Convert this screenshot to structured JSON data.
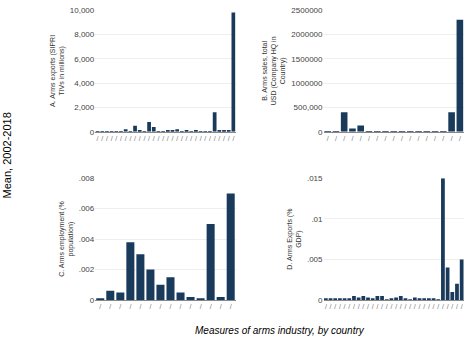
{
  "chart_data": [
    {
      "type": "bar",
      "ylabel": "A. Arms exports (SIPRI TIVs in millions)",
      "categories": [
        "/",
        "/",
        "/",
        "/",
        "/",
        "/",
        "/",
        "/",
        "/",
        "/",
        "/",
        "/",
        "/",
        "/",
        "/",
        "/",
        "/",
        "/",
        "/",
        "/",
        "/",
        "/",
        "/",
        "/",
        "/",
        "/",
        "/",
        "/",
        "/",
        "/"
      ],
      "values": [
        20,
        10,
        40,
        30,
        50,
        10,
        200,
        30,
        500,
        100,
        20,
        800,
        400,
        5,
        10,
        80,
        150,
        200,
        10,
        150,
        10,
        70,
        50,
        20,
        10,
        1600,
        100,
        80,
        100,
        9800
      ],
      "color": "#1a3a5c",
      "ylim": [
        0,
        10000
      ],
      "yticks": [
        0,
        {
          "value": 2000,
          "label": "2,000"
        },
        {
          "value": 4000,
          "label": "4,000"
        },
        {
          "value": 6000,
          "label": "6,000"
        },
        {
          "value": 8000,
          "label": "8,000"
        },
        {
          "value": 10000,
          "label": "10,000"
        }
      ],
      "grid": true
    },
    {
      "type": "bar",
      "ylabel": "B. Arms sales, total USD (Company HQ in Country)",
      "categories": [
        "/",
        "/",
        "/",
        "/",
        "/",
        "/",
        "/",
        "/",
        "/",
        "/",
        "/",
        "/",
        "/",
        "/",
        "/",
        "/",
        "/"
      ],
      "values": [
        1000,
        500,
        400000,
        70000,
        130000,
        3000,
        2000,
        1000,
        3000,
        8000,
        1000,
        5000,
        2000,
        1000,
        5000,
        400000,
        2300000
      ],
      "color": "#1a3a5c",
      "ylim": [
        0,
        2500000
      ],
      "yticks": [
        0,
        {
          "value": 500000,
          "label": "500,000"
        },
        1000000,
        1500000,
        2000000,
        2500000
      ],
      "grid": true
    },
    {
      "type": "bar",
      "ylabel": "C. Arms employment (% population)",
      "categories": [
        "/",
        "/",
        "/",
        "/",
        "/",
        "/",
        "/",
        "/",
        "/",
        "/",
        "/",
        "/",
        "/",
        "/"
      ],
      "values": [
        0.0001,
        0.0006,
        0.0005,
        0.0038,
        0.003,
        0.002,
        0.001,
        0.0015,
        0.0005,
        0.0002,
        0.0001,
        0.005,
        0.0002,
        0.007
      ],
      "color": "#1a3a5c",
      "ylim": [
        0,
        0.008
      ],
      "yticks": [
        0,
        {
          "value": 0.002,
          "label": ".002"
        },
        {
          "value": 0.004,
          "label": ".004"
        },
        {
          "value": 0.006,
          "label": ".006"
        },
        {
          "value": 0.008,
          "label": ".008"
        }
      ],
      "grid": true
    },
    {
      "type": "bar",
      "ylabel": "D. Arms Exports (% GDP)",
      "categories": [
        "/",
        "/",
        "/",
        "/",
        "/",
        "/",
        "/",
        "/",
        "/",
        "/",
        "/",
        "/",
        "/",
        "/",
        "/",
        "/",
        "/",
        "/",
        "/",
        "/",
        "/",
        "/",
        "/",
        "/",
        "/",
        "/",
        "/",
        "/",
        "/",
        "/"
      ],
      "values": [
        0.0001,
        0.00015,
        0.0002,
        0.0001,
        0.0002,
        0.0001,
        0.0005,
        0.0003,
        0.0005,
        0.0003,
        0.0001,
        0.0005,
        0.0005,
        8e-05,
        0.0001,
        0.0003,
        0.0005,
        0.0002,
        5e-05,
        0.0003,
        0.0001,
        0.0002,
        0.0001,
        0.0001,
        5e-05,
        0.015,
        0.004,
        0.001,
        0.002,
        0.005
      ],
      "color": "#1a3a5c",
      "ylim": [
        0,
        0.015
      ],
      "yticks": [
        0,
        {
          "value": 0.005,
          "label": ".005"
        },
        {
          "value": 0.01,
          "label": ".01"
        },
        {
          "value": 0.015,
          "label": ".015"
        }
      ],
      "grid": true
    }
  ],
  "ylabel": "Mean, 2002-2018",
  "xlabel": "Measures of arms industry, by country"
}
